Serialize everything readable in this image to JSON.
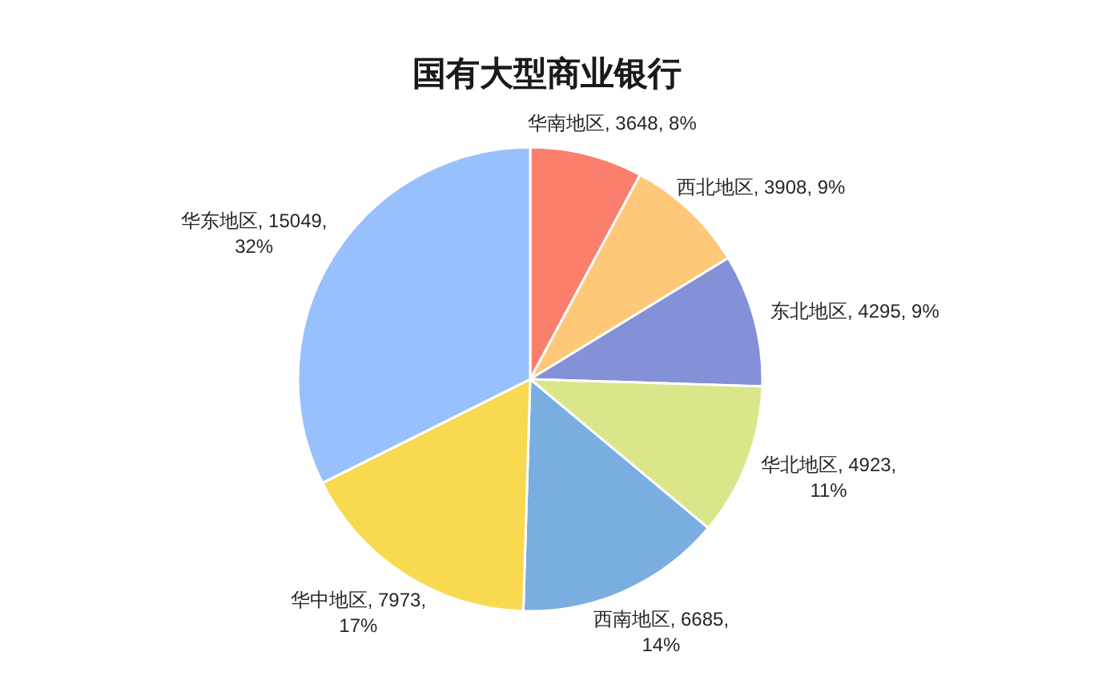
{
  "chart_data": {
    "type": "pie",
    "title": "国有大型商业银行",
    "categories": [
      "华南地区",
      "西北地区",
      "东北地区",
      "华北地区",
      "西南地区",
      "华中地区",
      "华东地区"
    ],
    "values": [
      3648,
      3908,
      4295,
      4923,
      6685,
      7973,
      15049
    ],
    "colors": [
      "#fa7f6c",
      "#fec878",
      "#8491d6",
      "#dbe68a",
      "#7baee0",
      "#f8d94f",
      "#97c0fd"
    ],
    "value_labels": [
      "3648, 8%",
      "3908, 9%",
      "4295, 9%",
      "4923, 11%",
      "6685, 14%",
      "7973, 17%",
      "15049, 32%"
    ]
  }
}
